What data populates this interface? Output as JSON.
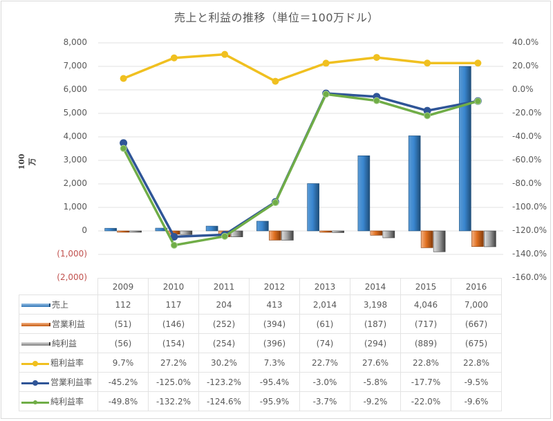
{
  "chart_data": {
    "type": "bar",
    "combo": "clustered-bar + line (secondary axis) with data table",
    "title": "売上と利益の推移（単位＝100万ドル）",
    "ylabel": "100万",
    "y2label": "",
    "categories": [
      "2009",
      "2010",
      "2011",
      "2012",
      "2013",
      "2014",
      "2015",
      "2016"
    ],
    "ylim": [
      -2000,
      8000
    ],
    "y_ticks": [
      "8,000",
      "7,000",
      "6,000",
      "5,000",
      "4,000",
      "3,000",
      "2,000",
      "1,000",
      "0",
      "(1,000)",
      "(2,000)"
    ],
    "y2lim": [
      -160,
      40
    ],
    "y2_ticks": [
      "40.0%",
      "20.0%",
      "0.0%",
      "-20.0%",
      "-40.0%",
      "-60.0%",
      "-80.0%",
      "-100.0%",
      "-120.0%",
      "-140.0%",
      "-160.0%"
    ],
    "grid": true,
    "legend_position": "data-table",
    "series": [
      {
        "name": "売上",
        "type": "bar",
        "axis": "primary",
        "color": "#2e75b6",
        "values": [
          112,
          117,
          204,
          413,
          2014,
          3198,
          4046,
          7000
        ],
        "labels": [
          "112",
          "117",
          "204",
          "413",
          "2,014",
          "3,198",
          "4,046",
          "7,000"
        ]
      },
      {
        "name": "営業利益",
        "type": "bar",
        "axis": "primary",
        "color": "#c55a11",
        "values": [
          -51,
          -146,
          -252,
          -394,
          -61,
          -187,
          -717,
          -667
        ],
        "labels": [
          "(51)",
          "(146)",
          "(252)",
          "(394)",
          "(61)",
          "(187)",
          "(717)",
          "(667)"
        ]
      },
      {
        "name": "純利益",
        "type": "bar",
        "axis": "primary",
        "color": "#7f7f7f",
        "values": [
          -56,
          -154,
          -254,
          -396,
          -74,
          -294,
          -889,
          -675
        ],
        "labels": [
          "(56)",
          "(154)",
          "(254)",
          "(396)",
          "(74)",
          "(294)",
          "(889)",
          "(675)"
        ]
      },
      {
        "name": "粗利益率",
        "type": "line",
        "axis": "secondary",
        "color": "#f0c020",
        "values": [
          9.7,
          27.2,
          30.2,
          7.3,
          22.7,
          27.6,
          22.8,
          22.8
        ],
        "labels": [
          "9.7%",
          "27.2%",
          "30.2%",
          "7.3%",
          "22.7%",
          "27.6%",
          "22.8%",
          "22.8%"
        ]
      },
      {
        "name": "営業利益率",
        "type": "line",
        "axis": "secondary",
        "color": "#2f5597",
        "values": [
          -45.2,
          -125.0,
          -123.2,
          -95.4,
          -3.0,
          -5.8,
          -17.7,
          -9.5
        ],
        "labels": [
          "-45.2%",
          "-125.0%",
          "-123.2%",
          "-95.4%",
          "-3.0%",
          "-5.8%",
          "-17.7%",
          "-9.5%"
        ]
      },
      {
        "name": "純利益率",
        "type": "line",
        "axis": "secondary",
        "color": "#70ad47",
        "values": [
          -49.8,
          -132.2,
          -124.6,
          -95.9,
          -3.7,
          -9.2,
          -22.0,
          -9.6
        ],
        "labels": [
          "-49.8%",
          "-132.2%",
          "-124.6%",
          "-95.9%",
          "-3.7%",
          "-9.2%",
          "-22.0%",
          "-9.6%"
        ]
      }
    ]
  }
}
